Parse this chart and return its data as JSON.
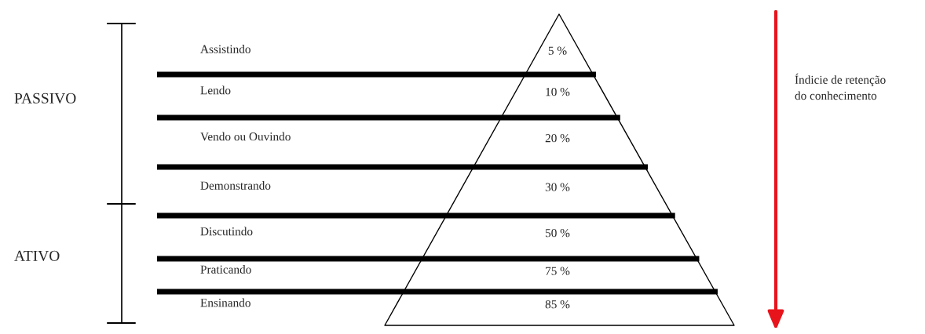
{
  "chart_data": {
    "type": "other",
    "categories": [
      "Assistindo",
      "Lendo",
      "Vendo ou Ouvindo",
      "Demonstrando",
      "Discutindo",
      "Praticando",
      "Ensinando"
    ],
    "values": [
      5,
      10,
      20,
      30,
      50,
      75,
      85
    ],
    "value_labels": [
      "5 %",
      "10 %",
      "20 %",
      "30 %",
      "50 %",
      "75 %",
      "85 %"
    ],
    "annotations": [
      "PASSIVO",
      "ATIVO",
      "Índicie de retenção\ndo conhecimento"
    ]
  }
}
